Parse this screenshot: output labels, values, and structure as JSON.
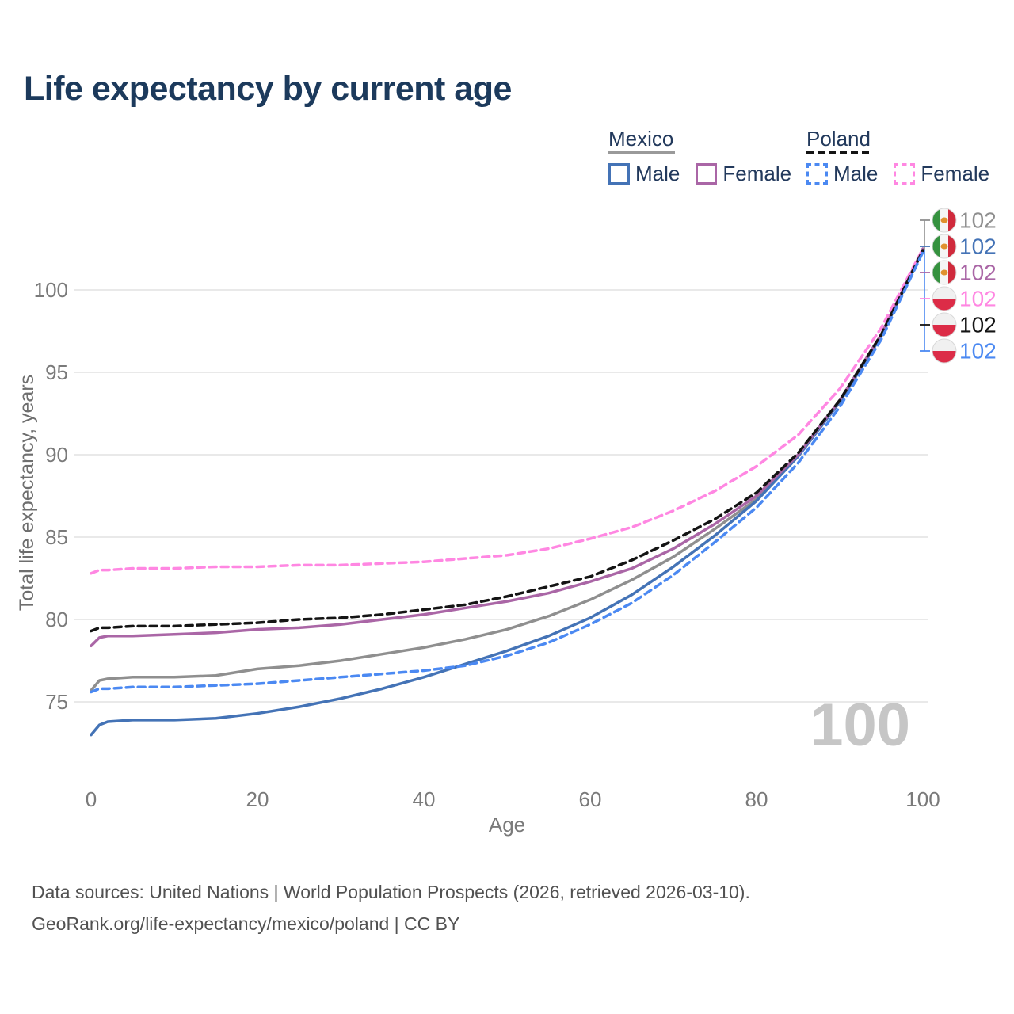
{
  "title": "Life expectancy by current age",
  "legend": {
    "groups": [
      {
        "country": "Mexico",
        "line_color": "#9a9a9a",
        "line_style": "solid",
        "items": [
          {
            "label": "Male",
            "color": "#4473b6",
            "dashed": false
          },
          {
            "label": "Female",
            "color": "#aa66a6",
            "dashed": false
          }
        ]
      },
      {
        "country": "Poland",
        "line_color": "#141414",
        "line_style": "dashed",
        "items": [
          {
            "label": "Male",
            "color": "#4b89f2",
            "dashed": true
          },
          {
            "label": "Female",
            "color": "#ff87e2",
            "dashed": true
          }
        ]
      }
    ]
  },
  "chart_data": {
    "type": "line",
    "title": "Life expectancy by current age",
    "xlabel": "Age",
    "ylabel": "Total life expectancy, years",
    "xlim": [
      0,
      100
    ],
    "ylim": [
      72,
      103.5
    ],
    "xticks": [
      0,
      20,
      40,
      60,
      80,
      100
    ],
    "yticks": [
      75,
      80,
      85,
      90,
      95,
      100
    ],
    "grid": "horizontal",
    "legend_position": "top-right",
    "x": [
      0,
      1,
      2,
      5,
      10,
      15,
      20,
      25,
      30,
      35,
      40,
      45,
      50,
      55,
      60,
      65,
      70,
      75,
      80,
      85,
      90,
      95,
      100
    ],
    "series": [
      {
        "name": "Mexico",
        "sex": "both",
        "color": "#8f8f8f",
        "dashed": false,
        "label_row": 0,
        "end_label": "102",
        "flag": "mexico",
        "values": [
          75.7,
          76.3,
          76.4,
          76.5,
          76.5,
          76.6,
          77.0,
          77.2,
          77.5,
          77.9,
          78.3,
          78.8,
          79.4,
          80.2,
          81.2,
          82.4,
          83.8,
          85.5,
          87.3,
          89.9,
          93.2,
          97.2,
          102.4
        ]
      },
      {
        "name": "Mexico Male",
        "sex": "male",
        "color": "#4473b6",
        "dashed": false,
        "label_row": 1,
        "end_label": "102",
        "flag": "mexico",
        "values": [
          73.0,
          73.6,
          73.8,
          73.9,
          73.9,
          74.0,
          74.3,
          74.7,
          75.2,
          75.8,
          76.5,
          77.3,
          78.1,
          79.0,
          80.1,
          81.5,
          83.2,
          85.1,
          87.2,
          89.9,
          93.2,
          97.2,
          102.4
        ]
      },
      {
        "name": "Mexico Female",
        "sex": "female",
        "color": "#aa66a6",
        "dashed": false,
        "label_row": 2,
        "end_label": "102",
        "flag": "mexico",
        "values": [
          78.4,
          78.9,
          79.0,
          79.0,
          79.1,
          79.2,
          79.4,
          79.5,
          79.7,
          80.0,
          80.3,
          80.7,
          81.1,
          81.6,
          82.3,
          83.1,
          84.3,
          85.8,
          87.5,
          90.0,
          93.3,
          97.3,
          102.5
        ]
      },
      {
        "name": "Poland Female",
        "sex": "female",
        "color": "#ff87e2",
        "dashed": true,
        "label_row": 3,
        "end_label": "102",
        "flag": "poland",
        "values": [
          82.8,
          83.0,
          83.0,
          83.1,
          83.1,
          83.2,
          83.2,
          83.3,
          83.3,
          83.4,
          83.5,
          83.7,
          83.9,
          84.3,
          84.9,
          85.6,
          86.6,
          87.8,
          89.3,
          91.2,
          94.0,
          97.7,
          102.5
        ]
      },
      {
        "name": "Poland",
        "sex": "both",
        "color": "#141414",
        "dashed": true,
        "label_row": 4,
        "end_label": "102",
        "flag": "poland",
        "values": [
          79.3,
          79.5,
          79.5,
          79.6,
          79.6,
          79.7,
          79.8,
          80.0,
          80.1,
          80.3,
          80.6,
          80.9,
          81.4,
          82.0,
          82.6,
          83.6,
          84.8,
          86.1,
          87.7,
          90.1,
          93.3,
          97.3,
          102.4
        ]
      },
      {
        "name": "Poland Male",
        "sex": "male",
        "color": "#4b89f2",
        "dashed": true,
        "label_row": 5,
        "end_label": "102",
        "flag": "poland",
        "values": [
          75.6,
          75.8,
          75.8,
          75.9,
          75.9,
          76.0,
          76.1,
          76.3,
          76.5,
          76.7,
          76.9,
          77.2,
          77.8,
          78.6,
          79.7,
          81.0,
          82.7,
          84.7,
          86.8,
          89.5,
          92.9,
          97.0,
          102.3
        ]
      }
    ],
    "flag_colors": {
      "mexico_green": "#35923f",
      "mexico_white": "#f5f5f5",
      "mexico_red": "#d02a3c",
      "mexico_emblem": "#e0902e",
      "poland_white": "#f0f0f0",
      "poland_red": "#dc2c47"
    },
    "gridline_color": "#e9e9e9",
    "tick_color": "#7a7a7a"
  },
  "watermark": "100",
  "footer": {
    "line1": "Data sources: United Nations | World Population Prospects (2026, retrieved 2026-03-10).",
    "line2": "GeoRank.org/life-expectancy/mexico/poland | CC BY"
  }
}
